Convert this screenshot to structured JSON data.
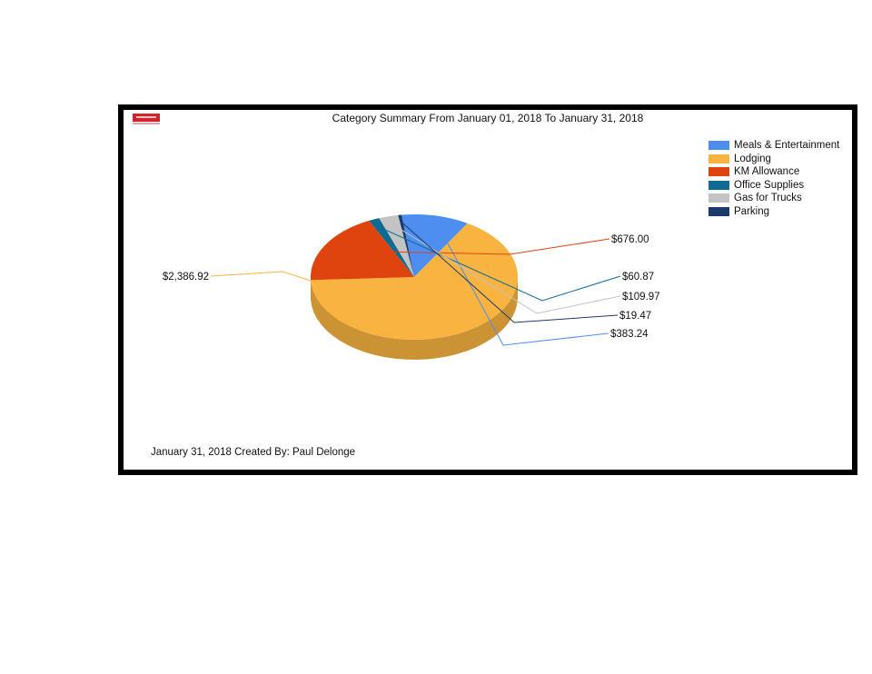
{
  "report": {
    "footer": "January 31, 2018 Created By: Paul Delonge"
  },
  "chart_data": {
    "type": "pie",
    "title": "Category Summary From January 01, 2018 To January 31, 2018",
    "legend_position": "top-right",
    "three_d": true,
    "slices": [
      {
        "label": "Meals & Entertainment",
        "value": 383.24,
        "value_label": "$383.24",
        "color": "#4c8ff0"
      },
      {
        "label": "Lodging",
        "value": 2386.92,
        "value_label": "$2,386.92",
        "color": "#f9b341"
      },
      {
        "label": "KM Allowance",
        "value": 676.0,
        "value_label": "$676.00",
        "color": "#e0440e"
      },
      {
        "label": "Office Supplies",
        "value": 60.87,
        "value_label": "$60.87",
        "color": "#0e6b94"
      },
      {
        "label": "Gas for Trucks",
        "value": 109.97,
        "value_label": "$109.97",
        "color": "#c3c3c3"
      },
      {
        "label": "Parking",
        "value": 19.47,
        "value_label": "$19.47",
        "color": "#1b3a6b"
      }
    ]
  }
}
